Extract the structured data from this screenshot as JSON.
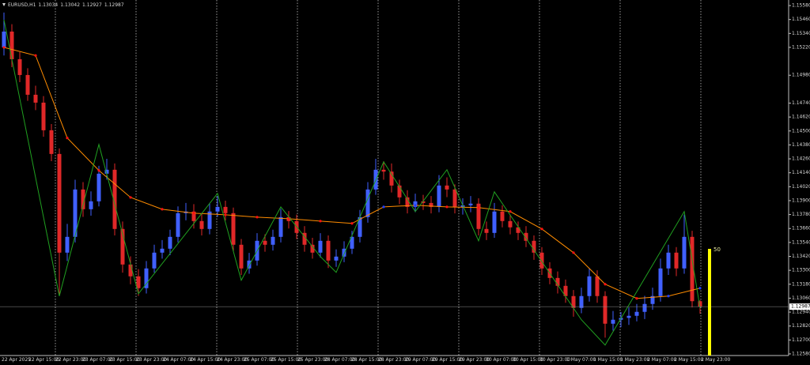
{
  "chart_data": {
    "type": "candlestick",
    "symbol": "EURUSD,H1",
    "ylim": [
      1.12566,
      1.15628
    ],
    "yticks": [
      {
        "value": 1.1558,
        "label": "1.15580"
      },
      {
        "value": 1.1546,
        "label": "1.15460"
      },
      {
        "value": 1.1534,
        "label": "1.15340"
      },
      {
        "value": 1.1522,
        "label": "1.15220"
      },
      {
        "value": 1.1498,
        "label": "1.14980"
      },
      {
        "value": 1.1474,
        "label": "1.14740"
      },
      {
        "value": 1.1462,
        "label": "1.14620"
      },
      {
        "value": 1.145,
        "label": "1.14500"
      },
      {
        "value": 1.1438,
        "label": "1.14380"
      },
      {
        "value": 1.1426,
        "label": "1.14260"
      },
      {
        "value": 1.1414,
        "label": "1.14140"
      },
      {
        "value": 1.1402,
        "label": "1.14020"
      },
      {
        "value": 1.139,
        "label": "1.13900"
      },
      {
        "value": 1.1378,
        "label": "1.13780"
      },
      {
        "value": 1.1366,
        "label": "1.13660"
      },
      {
        "value": 1.1354,
        "label": "1.13540"
      },
      {
        "value": 1.1342,
        "label": "1.13420"
      },
      {
        "value": 1.133,
        "label": "1.13300"
      },
      {
        "value": 1.1318,
        "label": "1.13180"
      },
      {
        "value": 1.1306,
        "label": "1.13060"
      },
      {
        "value": 1.1294,
        "label": "1.12940"
      },
      {
        "value": 1.1282,
        "label": "1.12820"
      },
      {
        "value": 1.127,
        "label": "1.12700"
      },
      {
        "value": 1.1258,
        "label": "1.12580"
      }
    ],
    "time_labels": [
      "22 Apr 2025",
      "22 Apr 15:00",
      "22 Apr 23:00",
      "23 Apr 07:00",
      "23 Apr 15:00",
      "23 Apr 23:00",
      "24 Apr 07:00",
      "24 Apr 15:00",
      "24 Apr 23:00",
      "25 Apr 07:00",
      "25 Apr 15:00",
      "25 Apr 23:00",
      "28 Apr 07:00",
      "28 Apr 15:00",
      "28 Apr 23:00",
      "29 Apr 07:00",
      "29 Apr 15:00",
      "29 Apr 23:00",
      "30 Apr 07:00",
      "30 Apr 15:00",
      "30 Apr 23:00",
      "1 May 07:00",
      "1 May 15:00",
      "1 May 23:00",
      "2 May 07:00",
      "2 May 15:00",
      "2 May 23:00"
    ],
    "colors": {
      "background": "#000000",
      "up": "#4060ff",
      "down": "#e02828",
      "ma": "#ff8c00",
      "ma_up": "#2040ff",
      "ma_down": "#ff1010",
      "zigzag": "#20a020",
      "indicator": "#ffff00",
      "axis": "#c0c0c0"
    },
    "candles": [
      [
        1.1522,
        1.1552,
        1.1515,
        1.15356
      ],
      [
        1.15356,
        1.1542,
        1.1505,
        1.15118
      ],
      [
        1.15118,
        1.1518,
        1.1492,
        1.14982
      ],
      [
        1.14982,
        1.1504,
        1.1476,
        1.14812
      ],
      [
        1.14812,
        1.1489,
        1.1468,
        1.14744
      ],
      [
        1.14744,
        1.148,
        1.1445,
        1.14506
      ],
      [
        1.14506,
        1.1456,
        1.1424,
        1.14302
      ],
      [
        1.14302,
        1.1435,
        1.1308,
        1.13452
      ],
      [
        1.13452,
        1.137,
        1.1338,
        1.13588
      ],
      [
        1.13588,
        1.1408,
        1.1354,
        1.13996
      ],
      [
        1.13996,
        1.1406,
        1.1376,
        1.13826
      ],
      [
        1.13826,
        1.1398,
        1.1377,
        1.13894
      ],
      [
        1.13894,
        1.142,
        1.1385,
        1.14132
      ],
      [
        1.14132,
        1.1426,
        1.1408,
        1.14166
      ],
      [
        1.14166,
        1.1422,
        1.136,
        1.13656
      ],
      [
        1.13656,
        1.1372,
        1.1328,
        1.1335
      ],
      [
        1.1335,
        1.1342,
        1.1318,
        1.13248
      ],
      [
        1.13248,
        1.1331,
        1.1308,
        1.13146
      ],
      [
        1.13146,
        1.1338,
        1.131,
        1.13316
      ],
      [
        1.13316,
        1.1352,
        1.1328,
        1.13452
      ],
      [
        1.13452,
        1.1356,
        1.134,
        1.13486
      ],
      [
        1.13486,
        1.1365,
        1.1343,
        1.13588
      ],
      [
        1.13588,
        1.1385,
        1.1354,
        1.13792
      ],
      [
        1.13792,
        1.1388,
        1.1373,
        1.13806
      ],
      [
        1.13806,
        1.1387,
        1.1366,
        1.13724
      ],
      [
        1.13724,
        1.1379,
        1.136,
        1.13656
      ],
      [
        1.13656,
        1.1388,
        1.1361,
        1.13806
      ],
      [
        1.13806,
        1.1394,
        1.1376,
        1.13846
      ],
      [
        1.13846,
        1.139,
        1.1373,
        1.13792
      ],
      [
        1.13792,
        1.1384,
        1.1346,
        1.1352
      ],
      [
        1.1352,
        1.1357,
        1.1326,
        1.13316
      ],
      [
        1.13316,
        1.1345,
        1.1327,
        1.13384
      ],
      [
        1.13384,
        1.1362,
        1.1334,
        1.13554
      ],
      [
        1.13554,
        1.1361,
        1.1346,
        1.1352
      ],
      [
        1.1352,
        1.1365,
        1.1347,
        1.13588
      ],
      [
        1.13588,
        1.1383,
        1.1354,
        1.13758
      ],
      [
        1.13758,
        1.1381,
        1.1366,
        1.13724
      ],
      [
        1.13724,
        1.1378,
        1.1357,
        1.13622
      ],
      [
        1.13622,
        1.1368,
        1.1346,
        1.1352
      ],
      [
        1.1352,
        1.1358,
        1.134,
        1.13452
      ],
      [
        1.13452,
        1.1362,
        1.1341,
        1.13554
      ],
      [
        1.13554,
        1.136,
        1.1332,
        1.13384
      ],
      [
        1.13384,
        1.1348,
        1.1333,
        1.13418
      ],
      [
        1.13418,
        1.1355,
        1.1337,
        1.13486
      ],
      [
        1.13486,
        1.1364,
        1.1344,
        1.13588
      ],
      [
        1.13588,
        1.1382,
        1.1354,
        1.13758
      ],
      [
        1.13758,
        1.1406,
        1.1371,
        1.13996
      ],
      [
        1.13996,
        1.1426,
        1.1395,
        1.14166
      ],
      [
        1.14166,
        1.1424,
        1.1408,
        1.1415
      ],
      [
        1.1415,
        1.1422,
        1.1397,
        1.1403
      ],
      [
        1.1403,
        1.1408,
        1.1387,
        1.13928
      ],
      [
        1.13928,
        1.1399,
        1.1379,
        1.13846
      ],
      [
        1.13846,
        1.1396,
        1.138,
        1.13894
      ],
      [
        1.13894,
        1.1395,
        1.1382,
        1.1388
      ],
      [
        1.1388,
        1.1394,
        1.1379,
        1.13846
      ],
      [
        1.13846,
        1.1412,
        1.138,
        1.1403
      ],
      [
        1.1403,
        1.141,
        1.1393,
        1.13996
      ],
      [
        1.13996,
        1.1404,
        1.1379,
        1.13846
      ],
      [
        1.13846,
        1.1392,
        1.1378,
        1.1386
      ],
      [
        1.1386,
        1.1394,
        1.138,
        1.13874
      ],
      [
        1.13874,
        1.1392,
        1.136,
        1.13656
      ],
      [
        1.13656,
        1.1372,
        1.1356,
        1.13622
      ],
      [
        1.13622,
        1.1388,
        1.1358,
        1.13806
      ],
      [
        1.13806,
        1.1386,
        1.1367,
        1.13724
      ],
      [
        1.13724,
        1.1378,
        1.1361,
        1.1367
      ],
      [
        1.1367,
        1.1372,
        1.1356,
        1.13622
      ],
      [
        1.13622,
        1.1368,
        1.135,
        1.13554
      ],
      [
        1.13554,
        1.136,
        1.1339,
        1.13452
      ],
      [
        1.13452,
        1.135,
        1.1326,
        1.13316
      ],
      [
        1.13316,
        1.1337,
        1.1318,
        1.13234
      ],
      [
        1.13234,
        1.1329,
        1.131,
        1.13166
      ],
      [
        1.13166,
        1.1322,
        1.1302,
        1.13078
      ],
      [
        1.13078,
        1.1313,
        1.129,
        1.12976
      ],
      [
        1.12976,
        1.1315,
        1.1293,
        1.13078
      ],
      [
        1.13078,
        1.1332,
        1.1303,
        1.13248
      ],
      [
        1.13248,
        1.133,
        1.1302,
        1.13078
      ],
      [
        1.13078,
        1.1312,
        1.1272,
        1.1284
      ],
      [
        1.1284,
        1.1295,
        1.1278,
        1.12874
      ],
      [
        1.12874,
        1.1294,
        1.1281,
        1.1289
      ],
      [
        1.1289,
        1.1298,
        1.1283,
        1.12908
      ],
      [
        1.12908,
        1.1301,
        1.1286,
        1.12942
      ],
      [
        1.12942,
        1.1308,
        1.1288,
        1.1301
      ],
      [
        1.1301,
        1.1315,
        1.1296,
        1.13078
      ],
      [
        1.13078,
        1.134,
        1.1303,
        1.13316
      ],
      [
        1.13316,
        1.1352,
        1.1326,
        1.13452
      ],
      [
        1.13452,
        1.135,
        1.1325,
        1.13316
      ],
      [
        1.13316,
        1.1378,
        1.1327,
        1.13588
      ],
      [
        1.13588,
        1.1364,
        1.1298,
        1.13034
      ],
      [
        1.13034,
        1.13042,
        1.12927,
        1.12987
      ]
    ],
    "ma": {
      "x": [
        0,
        4,
        8,
        12,
        16,
        20,
        24,
        28,
        32,
        36,
        40,
        44,
        48,
        52,
        56,
        60,
        64,
        68,
        72,
        76,
        80,
        84,
        88
      ],
      "values": [
        1.1522,
        1.1515,
        1.1444,
        1.1416,
        1.13928,
        1.13826,
        1.13792,
        1.13778,
        1.13758,
        1.13744,
        1.13724,
        1.13704,
        1.13846,
        1.1386,
        1.13846,
        1.1384,
        1.13806,
        1.13656,
        1.13452,
        1.1318,
        1.13058,
        1.13078,
        1.13146
      ]
    },
    "zigzag": {
      "x": [
        0,
        7,
        12,
        17,
        27,
        30,
        35,
        40,
        42,
        48,
        52,
        56,
        60,
        62,
        73,
        76,
        86,
        88
      ],
      "values": [
        1.15458,
        1.13078,
        1.14384,
        1.13098,
        1.13962,
        1.13214,
        1.13846,
        1.13418,
        1.13282,
        1.14234,
        1.13806,
        1.14166,
        1.13554,
        1.13976,
        1.12874,
        1.12656,
        1.13806,
        1.12976
      ]
    },
    "indicator_value": 50
  }
}
